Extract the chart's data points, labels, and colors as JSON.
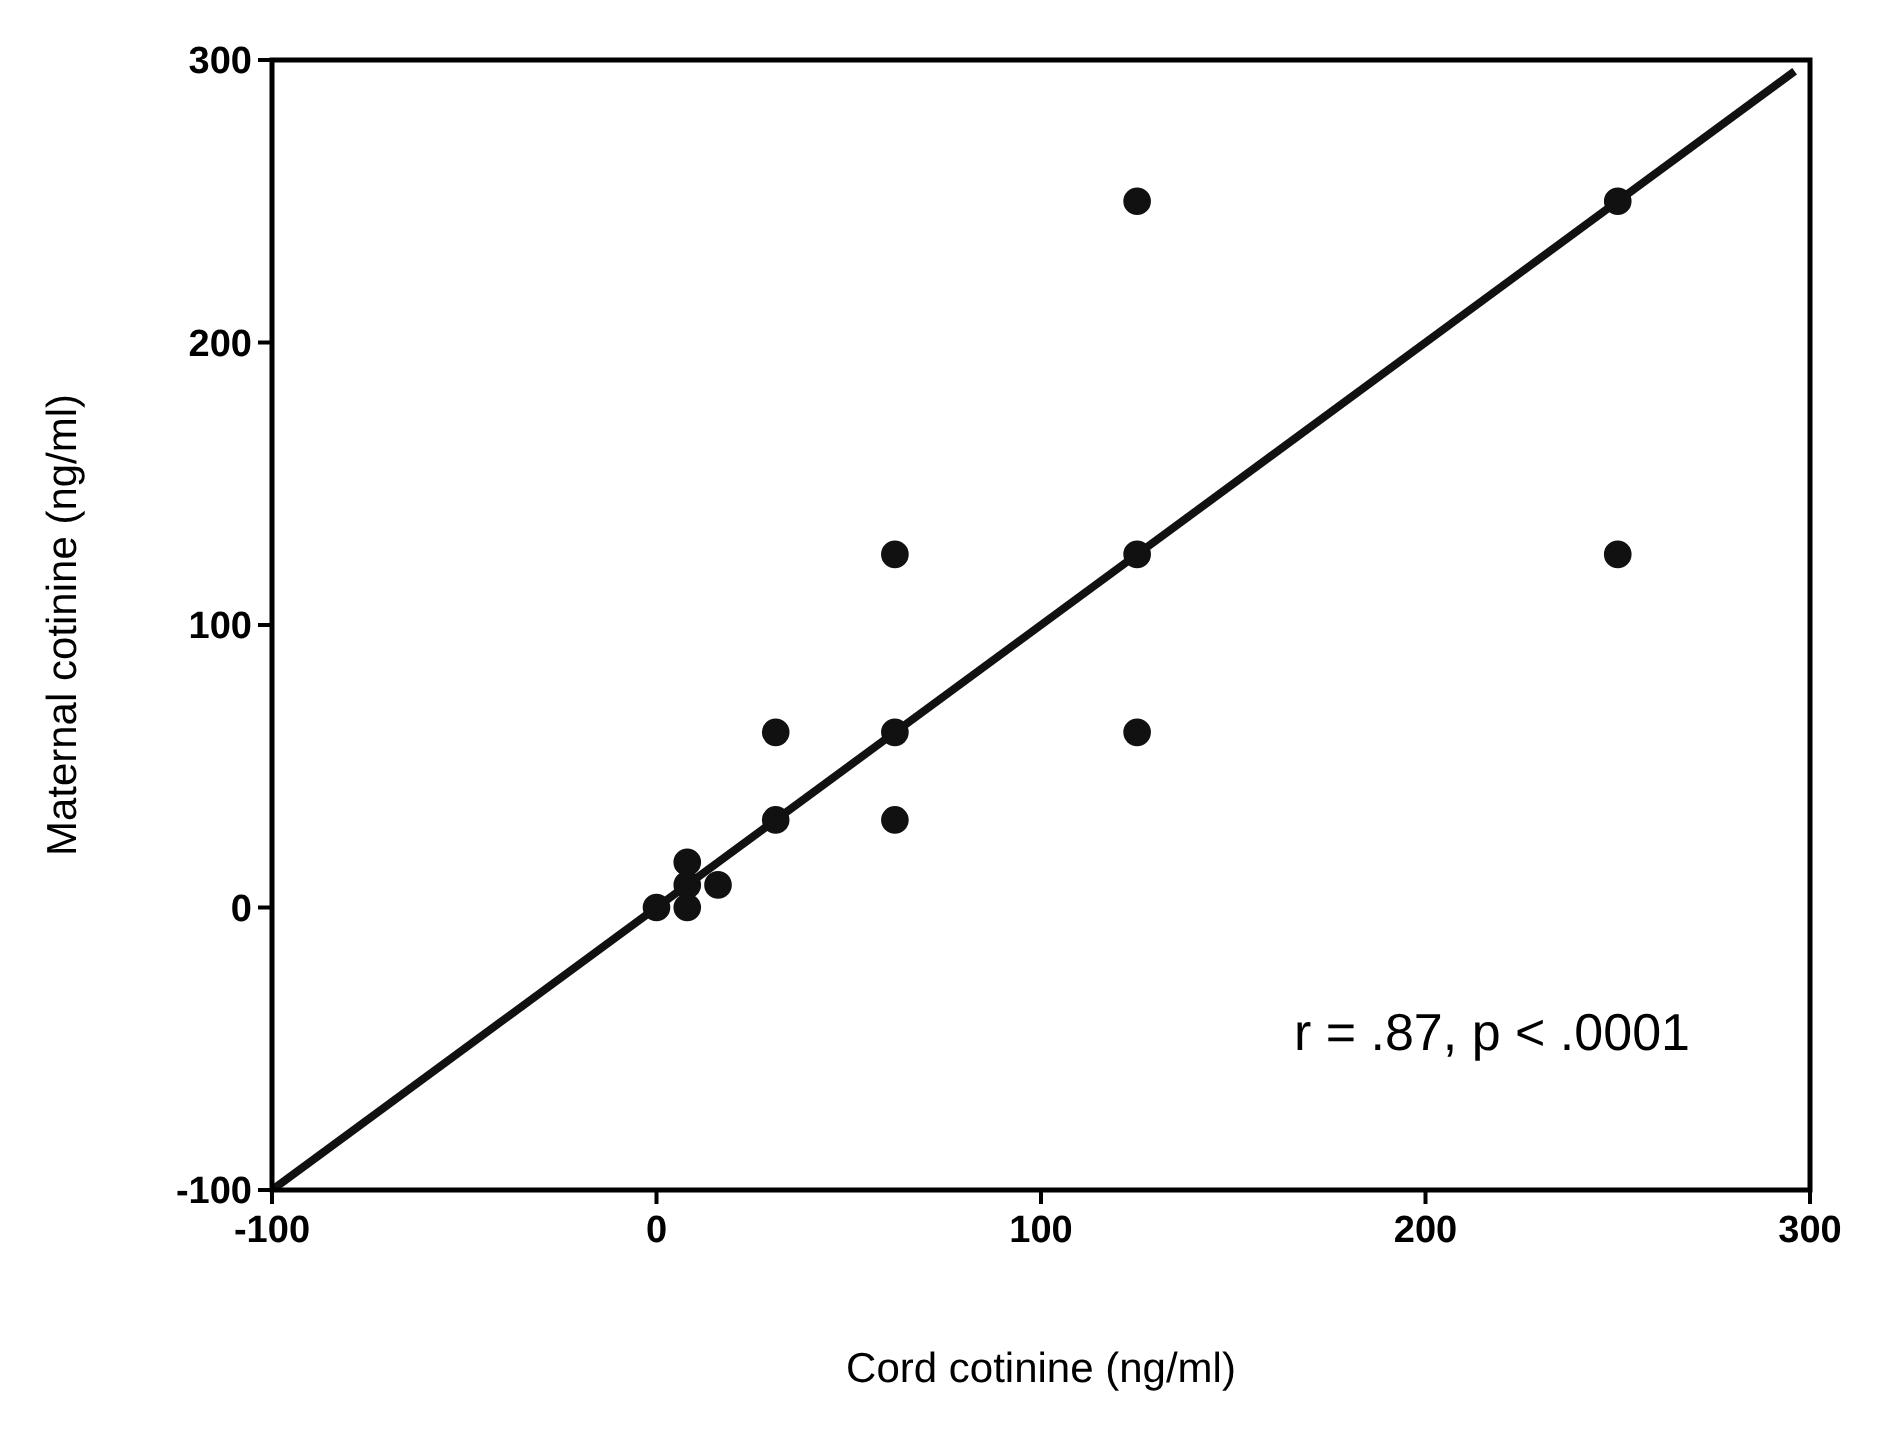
{
  "chart_data": {
    "type": "scatter",
    "xlabel": "Cord cotinine (ng/ml)",
    "ylabel": "Maternal cotinine (ng/ml)",
    "xlim": [
      -100,
      300
    ],
    "ylim": [
      -100,
      300
    ],
    "xticks": [
      -100,
      0,
      100,
      200,
      300
    ],
    "yticks": [
      -100,
      0,
      100,
      200,
      300
    ],
    "grid": false,
    "series": [
      {
        "marker": "circle",
        "color": "#111111",
        "x": [
          0,
          8,
          8,
          8,
          16,
          31,
          31,
          62,
          62,
          62,
          125,
          125,
          125,
          250,
          250
        ],
        "values": [
          0,
          0,
          8,
          16,
          8,
          31,
          62,
          31,
          62,
          125,
          62,
          125,
          250,
          125,
          250
        ]
      },
      {
        "type": "line",
        "color": "#111111",
        "x": [
          -100,
          296
        ],
        "values": [
          -100,
          296
        ],
        "line_style": "solid"
      }
    ],
    "annotations": [
      {
        "text": "r = .87, p < .0001"
      }
    ]
  }
}
